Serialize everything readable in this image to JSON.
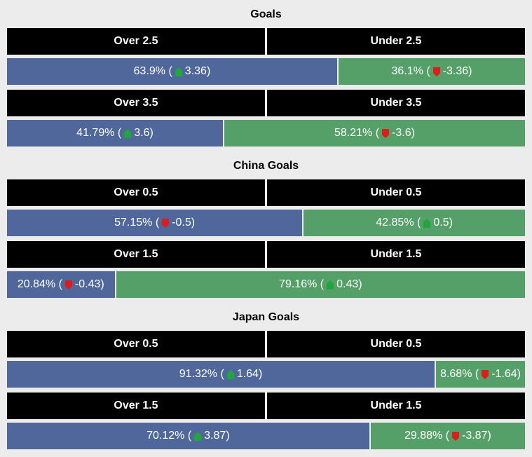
{
  "page": {
    "background": "#ececec"
  },
  "colors": {
    "header_bg": "#000000",
    "header_text": "#ffffff",
    "over_bar": "#50679b",
    "under_bar": "#55a069",
    "bar_text": "#ffffff",
    "up_arrow": "#1ea83c",
    "down_arrow": "#e11a1a"
  },
  "sections": [
    {
      "title": "Goals",
      "rows": [
        {
          "over_label": "Over 2.5",
          "under_label": "Under 2.5",
          "over": {
            "pct": "63.9%",
            "pct_value": 63.9,
            "trend": "up",
            "odds": "3.36"
          },
          "under": {
            "pct": "36.1%",
            "pct_value": 36.1,
            "trend": "down",
            "odds": "-3.36"
          }
        },
        {
          "over_label": "Over 3.5",
          "under_label": "Under 3.5",
          "over": {
            "pct": "41.79%",
            "pct_value": 41.79,
            "trend": "up",
            "odds": "3.6"
          },
          "under": {
            "pct": "58.21%",
            "pct_value": 58.21,
            "trend": "down",
            "odds": "-3.6"
          }
        }
      ]
    },
    {
      "title": "China Goals",
      "rows": [
        {
          "over_label": "Over 0.5",
          "under_label": "Under 0.5",
          "over": {
            "pct": "57.15%",
            "pct_value": 57.15,
            "trend": "down",
            "odds": "-0.5"
          },
          "under": {
            "pct": "42.85%",
            "pct_value": 42.85,
            "trend": "up",
            "odds": "0.5"
          }
        },
        {
          "over_label": "Over 1.5",
          "under_label": "Under 1.5",
          "over": {
            "pct": "20.84%",
            "pct_value": 20.84,
            "trend": "down",
            "odds": "-0.43"
          },
          "under": {
            "pct": "79.16%",
            "pct_value": 79.16,
            "trend": "up",
            "odds": "0.43"
          }
        }
      ]
    },
    {
      "title": "Japan Goals",
      "rows": [
        {
          "over_label": "Over 0.5",
          "under_label": "Under 0.5",
          "over": {
            "pct": "91.32%",
            "pct_value": 91.32,
            "trend": "up",
            "odds": "1.64"
          },
          "under": {
            "pct": "8.68%",
            "pct_value": 8.68,
            "trend": "down",
            "odds": "-1.64"
          }
        },
        {
          "over_label": "Over 1.5",
          "under_label": "Under 1.5",
          "over": {
            "pct": "70.12%",
            "pct_value": 70.12,
            "trend": "up",
            "odds": "3.87"
          },
          "under": {
            "pct": "29.88%",
            "pct_value": 29.88,
            "trend": "down",
            "odds": "-3.87"
          }
        }
      ]
    }
  ],
  "chart_data": [
    {
      "type": "bar",
      "title": "Goals",
      "stacked_percentage": true,
      "categories": [
        "2.5",
        "3.5"
      ],
      "series": [
        {
          "name": "Over %",
          "values": [
            63.9,
            41.79
          ]
        },
        {
          "name": "Under %",
          "values": [
            36.1,
            58.21
          ]
        }
      ],
      "annotations": [
        {
          "category": "2.5",
          "over_odds_change": 3.36,
          "under_odds_change": -3.36
        },
        {
          "category": "3.5",
          "over_odds_change": 3.6,
          "under_odds_change": -3.6
        }
      ],
      "legend_position": "none",
      "xlabel": "",
      "ylabel": "",
      "ylim": [
        0,
        100
      ]
    },
    {
      "type": "bar",
      "title": "China Goals",
      "stacked_percentage": true,
      "categories": [
        "0.5",
        "1.5"
      ],
      "series": [
        {
          "name": "Over %",
          "values": [
            57.15,
            20.84
          ]
        },
        {
          "name": "Under %",
          "values": [
            42.85,
            79.16
          ]
        }
      ],
      "annotations": [
        {
          "category": "0.5",
          "over_odds_change": -0.5,
          "under_odds_change": 0.5
        },
        {
          "category": "1.5",
          "over_odds_change": -0.43,
          "under_odds_change": 0.43
        }
      ],
      "legend_position": "none",
      "xlabel": "",
      "ylabel": "",
      "ylim": [
        0,
        100
      ]
    },
    {
      "type": "bar",
      "title": "Japan Goals",
      "stacked_percentage": true,
      "categories": [
        "0.5",
        "1.5"
      ],
      "series": [
        {
          "name": "Over %",
          "values": [
            91.32,
            70.12
          ]
        },
        {
          "name": "Under %",
          "values": [
            8.68,
            29.88
          ]
        }
      ],
      "annotations": [
        {
          "category": "0.5",
          "over_odds_change": 1.64,
          "under_odds_change": -1.64
        },
        {
          "category": "1.5",
          "over_odds_change": 3.87,
          "under_odds_change": -3.87
        }
      ],
      "legend_position": "none",
      "xlabel": "",
      "ylabel": "",
      "ylim": [
        0,
        100
      ]
    }
  ]
}
